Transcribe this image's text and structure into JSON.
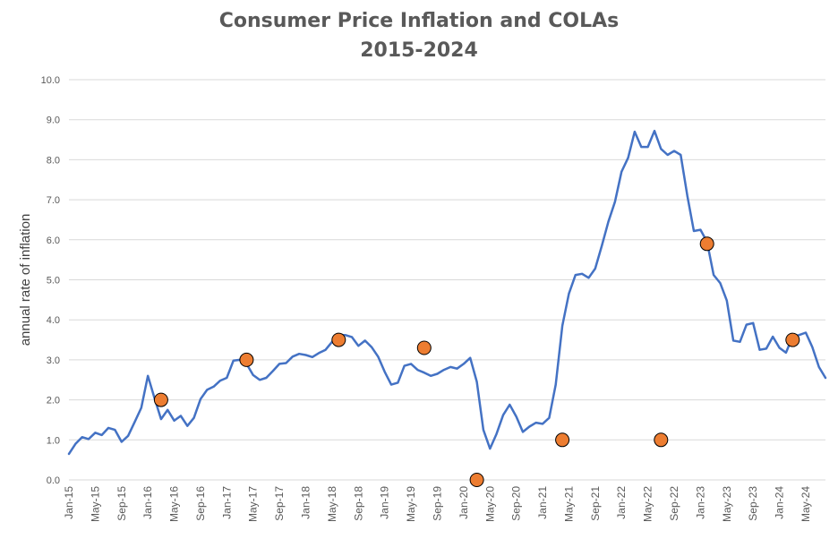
{
  "chart_data": {
    "type": "line",
    "title": "Consumer Price Inflation and COLAs",
    "subtitle": "2015-2024",
    "xlabel": "",
    "ylabel": "annual rate of inflation",
    "ylim": [
      0,
      10
    ],
    "y_ticks": [
      "0.0",
      "1.0",
      "2.0",
      "3.0",
      "4.0",
      "5.0",
      "6.0",
      "7.0",
      "8.0",
      "9.0",
      "10.0"
    ],
    "x_tick_labels": [
      "Jan-15",
      "May-15",
      "Sep-15",
      "Jan-16",
      "May-16",
      "Sep-16",
      "Jan-17",
      "May-17",
      "Sep-17",
      "Jan-18",
      "May-18",
      "Sep-18",
      "Jan-19",
      "May-19",
      "Sep-19",
      "Jan-20",
      "May-20",
      "Sep-20",
      "Jan-21",
      "May-21",
      "Sep-21",
      "Jan-22",
      "May-22",
      "Sep-22",
      "Jan-23",
      "May-23",
      "Sep-23",
      "Jan-24",
      "May-24"
    ],
    "grid": "horizontal",
    "legend": "none",
    "colors": {
      "line": "#4472c4",
      "marker_fill": "#ed7d31",
      "marker_stroke": "#000000",
      "grid": "#d9d9d9"
    },
    "series": [
      {
        "type": "line",
        "x_start": "Jan-15",
        "frequency": "monthly",
        "values": [
          0.65,
          0.9,
          1.07,
          1.02,
          1.18,
          1.12,
          1.3,
          1.25,
          0.95,
          1.1,
          1.45,
          1.8,
          2.6,
          2.05,
          1.52,
          1.75,
          1.48,
          1.6,
          1.35,
          1.55,
          2.02,
          2.25,
          2.33,
          2.48,
          2.55,
          2.98,
          3.0,
          2.9,
          2.62,
          2.5,
          2.55,
          2.72,
          2.9,
          2.92,
          3.08,
          3.15,
          3.12,
          3.07,
          3.17,
          3.25,
          3.45,
          3.62,
          3.62,
          3.57,
          3.35,
          3.48,
          3.32,
          3.08,
          2.7,
          2.38,
          2.43,
          2.85,
          2.9,
          2.75,
          2.68,
          2.6,
          2.65,
          2.75,
          2.82,
          2.78,
          2.9,
          3.05,
          2.45,
          1.25,
          0.78,
          1.15,
          1.62,
          1.88,
          1.58,
          1.2,
          1.33,
          1.43,
          1.4,
          1.55,
          2.38,
          3.85,
          4.65,
          5.12,
          5.15,
          5.05,
          5.28,
          5.85,
          6.45,
          6.95,
          7.7,
          8.05,
          8.7,
          8.32,
          8.32,
          8.72,
          8.27,
          8.12,
          8.22,
          8.12,
          7.1,
          6.22,
          6.25,
          5.95,
          5.12,
          4.92,
          4.48,
          3.48,
          3.45,
          3.88,
          3.92,
          3.25,
          3.28,
          3.58,
          3.3,
          3.18,
          3.58,
          3.62,
          3.68,
          3.32,
          2.82,
          2.55
        ]
      },
      {
        "type": "scatter",
        "points": [
          {
            "x": "Mar-16",
            "y": 2.0
          },
          {
            "x": "Apr-17",
            "y": 3.0
          },
          {
            "x": "Jun-18",
            "y": 3.5
          },
          {
            "x": "Jul-19",
            "y": 3.3
          },
          {
            "x": "Mar-20",
            "y": 0.0
          },
          {
            "x": "Apr-21",
            "y": 1.0
          },
          {
            "x": "Jul-22",
            "y": 1.0
          },
          {
            "x": "Feb-23",
            "y": 5.9
          },
          {
            "x": "Mar-24",
            "y": 3.5
          }
        ]
      }
    ]
  }
}
